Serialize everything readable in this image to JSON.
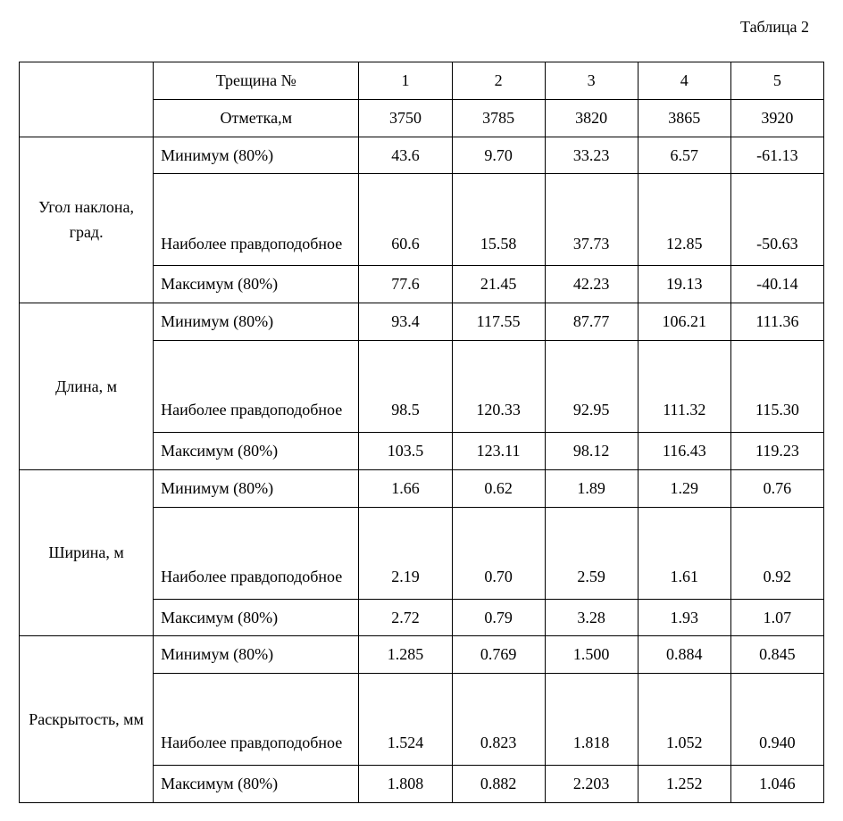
{
  "caption": "Таблица 2",
  "header": {
    "crack_label": "Трещина №",
    "mark_label": "Отметка,м",
    "crack_numbers": [
      "1",
      "2",
      "3",
      "4",
      "5"
    ],
    "marks": [
      "3750",
      "3785",
      "3820",
      "3865",
      "3920"
    ]
  },
  "metrics": {
    "min": "Минимум (80%)",
    "likely": "Наиболее правдоподобное",
    "max": "Максимум (80%)"
  },
  "groups": [
    {
      "title": "Угол наклона, град.",
      "rows": {
        "min": [
          "43.6",
          "9.70",
          "33.23",
          "6.57",
          "-61.13"
        ],
        "likely": [
          "60.6",
          "15.58",
          "37.73",
          "12.85",
          "-50.63"
        ],
        "max": [
          "77.6",
          "21.45",
          "42.23",
          "19.13",
          "-40.14"
        ]
      }
    },
    {
      "title": "Длина, м",
      "rows": {
        "min": [
          "93.4",
          "117.55",
          "87.77",
          "106.21",
          "111.36"
        ],
        "likely": [
          "98.5",
          "120.33",
          "92.95",
          "111.32",
          "115.30"
        ],
        "max": [
          "103.5",
          "123.11",
          "98.12",
          "116.43",
          "119.23"
        ]
      }
    },
    {
      "title": "Ширина, м",
      "rows": {
        "min": [
          "1.66",
          "0.62",
          "1.89",
          "1.29",
          "0.76"
        ],
        "likely": [
          "2.19",
          "0.70",
          "2.59",
          "1.61",
          "0.92"
        ],
        "max": [
          "2.72",
          "0.79",
          "3.28",
          "1.93",
          "1.07"
        ]
      }
    },
    {
      "title": "Раскрытость, мм",
      "rows": {
        "min": [
          "1.285",
          "0.769",
          "1.500",
          "0.884",
          "0.845"
        ],
        "likely": [
          "1.524",
          "0.823",
          "1.818",
          "1.052",
          "0.940"
        ],
        "max": [
          "1.808",
          "0.882",
          "2.203",
          "1.252",
          "1.046"
        ]
      }
    }
  ]
}
